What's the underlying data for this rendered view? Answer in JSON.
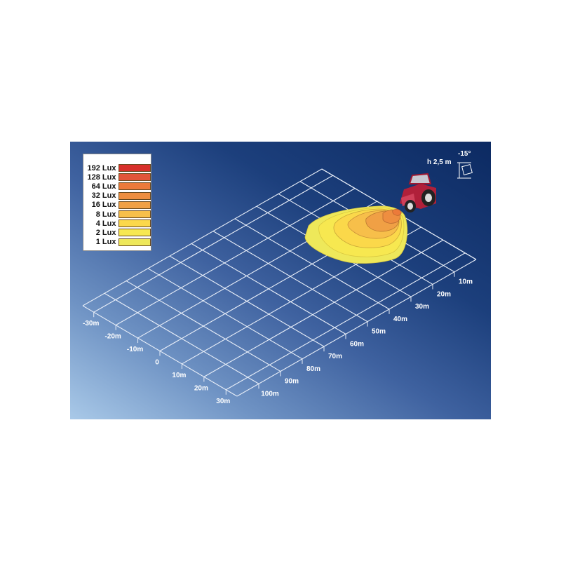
{
  "legend": {
    "items": [
      {
        "label": "192 Lux",
        "color": "#d8302a"
      },
      {
        "label": "128 Lux",
        "color": "#e2553a"
      },
      {
        "label": "64 Lux",
        "color": "#ec7a3a"
      },
      {
        "label": "32 Lux",
        "color": "#ee8e40"
      },
      {
        "label": "16 Lux",
        "color": "#f0a045"
      },
      {
        "label": "8 Lux",
        "color": "#f7bf4a"
      },
      {
        "label": "4 Lux",
        "color": "#fbd84a"
      },
      {
        "label": "2 Lux",
        "color": "#f7e850"
      },
      {
        "label": "1 Lux",
        "color": "#eee85a"
      }
    ]
  },
  "mounting": {
    "height_label": "h 2,5 m",
    "angle_label": "-15°"
  },
  "distance_axis": {
    "labels": [
      "10m",
      "20m",
      "30m",
      "40m",
      "50m",
      "60m",
      "70m",
      "80m",
      "90m",
      "100m"
    ],
    "values": [
      10,
      20,
      30,
      40,
      50,
      60,
      70,
      80,
      90,
      100
    ],
    "range": [
      0,
      110
    ]
  },
  "lateral_axis": {
    "labels": [
      "-30m",
      "-20m",
      "-10m",
      "0",
      "10m",
      "20m",
      "30m"
    ],
    "values": [
      -30,
      -20,
      -10,
      0,
      10,
      20,
      30
    ],
    "range": [
      -35,
      35
    ]
  },
  "colors": {
    "grid": "#e8eef8",
    "background_dark": "#0c2a62",
    "background_light": "#a9c9e8",
    "tractor": "#b0203a"
  },
  "icons": [
    "tractor-icon",
    "lamp-angle-icon"
  ]
}
